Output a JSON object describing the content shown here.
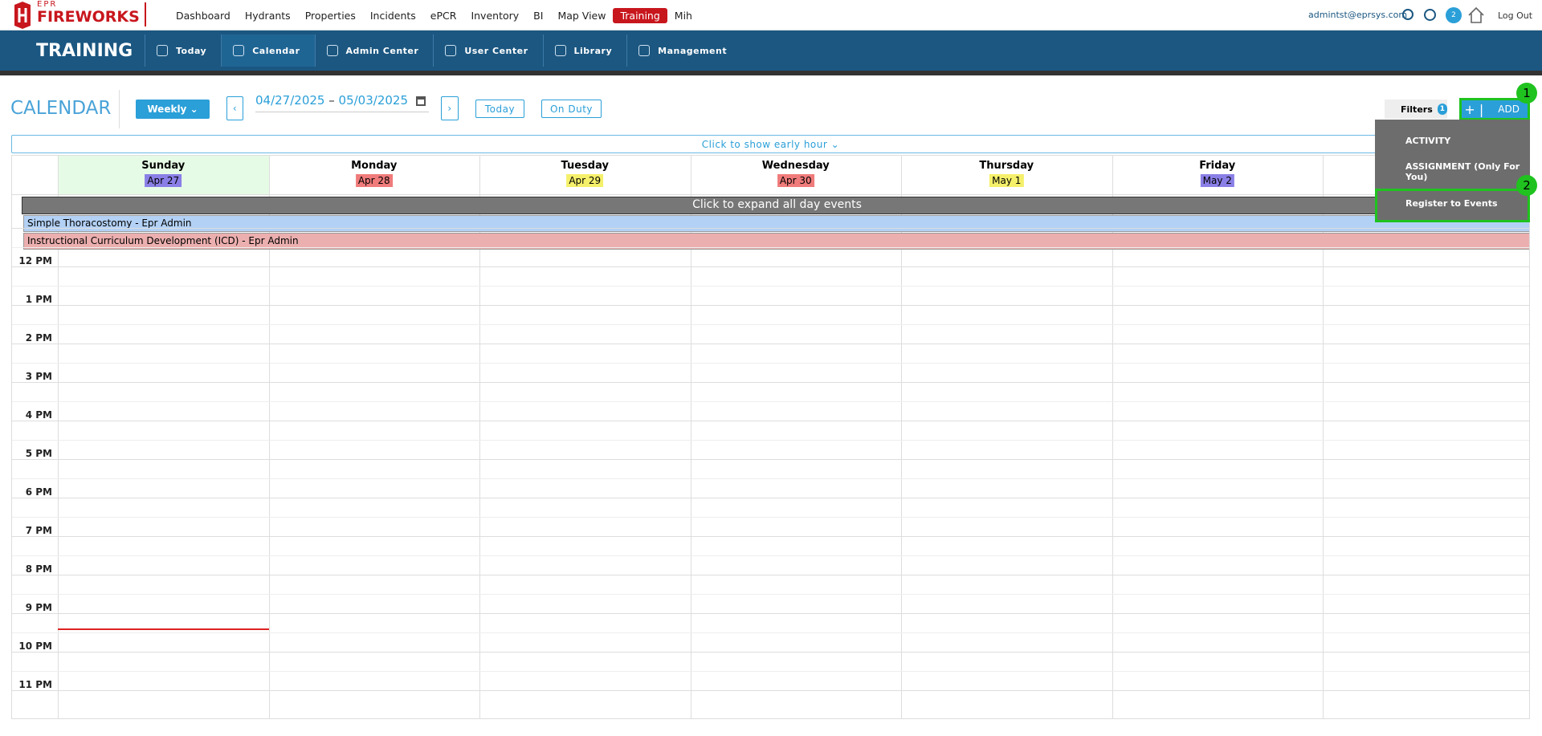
{
  "logo": {
    "small": "EPR",
    "name": "FIREWORKS"
  },
  "nav": {
    "links": [
      "Dashboard",
      "Hydrants",
      "Properties",
      "Incidents",
      "ePCR",
      "Inventory",
      "BI",
      "Map View",
      "Training",
      "Mih"
    ],
    "user": "admintst@eprsys.com",
    "badge": "2",
    "logout": "Log Out"
  },
  "module": {
    "title": "TRAINING",
    "tabs": [
      "Today",
      "Calendar",
      "Admin Center",
      "User Center",
      "Library",
      "Management"
    ]
  },
  "calendar": {
    "title": "CALENDAR",
    "view": "Weekly",
    "start_date": "04/27/2025",
    "separator": "–",
    "end_date": "05/03/2025",
    "today": "Today",
    "on_duty": "On Duty",
    "filters": "Filters",
    "filters_count": "1",
    "add": "ADD",
    "early_hour": "Click to show early hour",
    "all_day": "Click to expand all day events"
  },
  "dropdown": {
    "items": [
      "ACTIVITY",
      "ASSIGNMENT (Only For You)",
      "Register to Events"
    ]
  },
  "annotations": [
    "1",
    "2"
  ],
  "days": [
    {
      "name": "Sunday",
      "date": "Apr 27"
    },
    {
      "name": "Monday",
      "date": "Apr 28"
    },
    {
      "name": "Tuesday",
      "date": "Apr 29"
    },
    {
      "name": "Wednesday",
      "date": "Apr 30"
    },
    {
      "name": "Thursday",
      "date": "May 1"
    },
    {
      "name": "Friday",
      "date": "May 2"
    }
  ],
  "events": [
    "Simple Thoracostomy - Epr Admin",
    "Instructional Curriculum Development (ICD) - Epr Admin"
  ],
  "hours": [
    "12 PM",
    "1 PM",
    "2 PM",
    "3 PM",
    "4 PM",
    "5 PM",
    "6 PM",
    "7 PM",
    "8 PM",
    "9 PM",
    "10 PM",
    "11 PM"
  ]
}
